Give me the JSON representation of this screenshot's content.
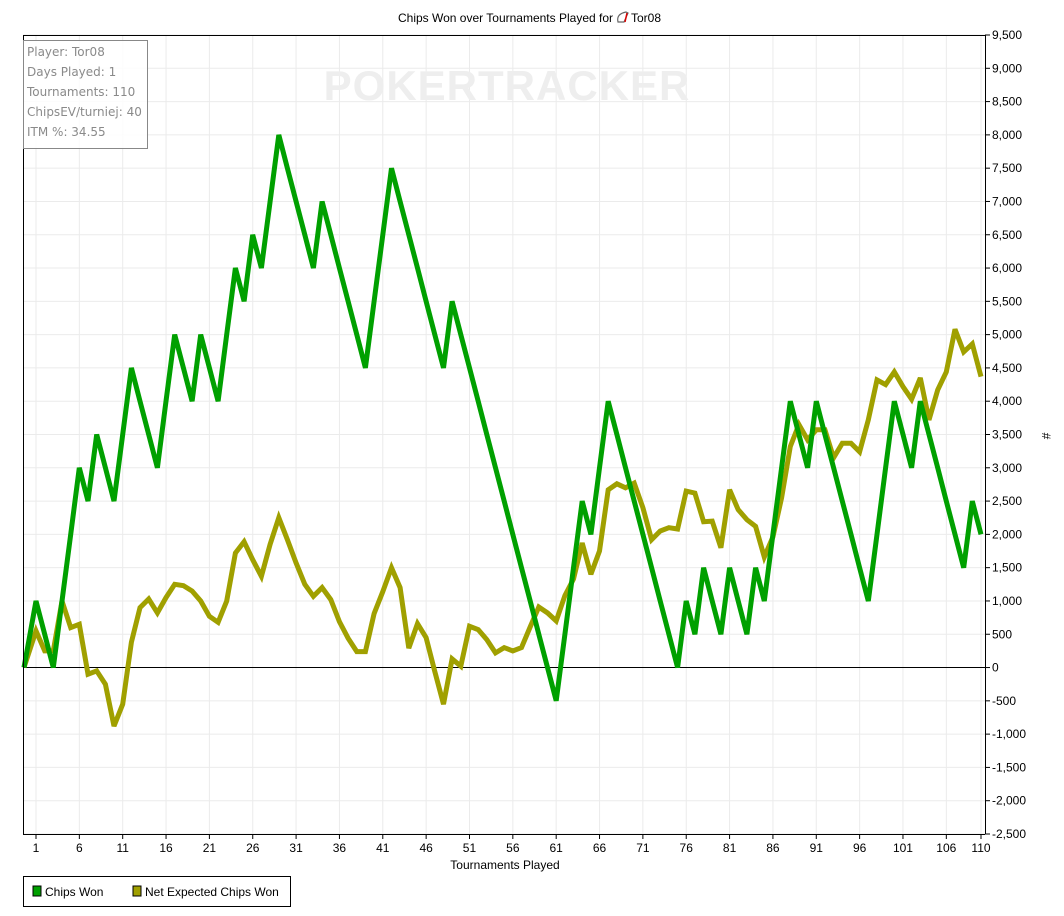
{
  "chart_data": {
    "type": "line",
    "title": "Chips Won over Tournaments Played for",
    "player_name": "Tor08",
    "xlabel": "Tournaments Played",
    "ylabel": "#",
    "xlim": [
      0,
      110
    ],
    "ylim": [
      -2500,
      9500
    ],
    "x_ticks": [
      1,
      6,
      11,
      16,
      21,
      26,
      31,
      36,
      41,
      46,
      51,
      56,
      61,
      66,
      71,
      76,
      81,
      86,
      91,
      96,
      101,
      106,
      110
    ],
    "y_ticks": [
      9500,
      9000,
      8500,
      8000,
      7500,
      7000,
      6500,
      6000,
      5500,
      5000,
      4500,
      4000,
      3500,
      3000,
      2500,
      2000,
      1500,
      1000,
      500,
      0,
      -500,
      -1000,
      -1500,
      -2000,
      -2500
    ],
    "y_tick_labels": [
      "9,500",
      "9,000",
      "8,500",
      "8,000",
      "7,500",
      "7,000",
      "6,500",
      "6,000",
      "5,500",
      "5,000",
      "4,500",
      "4,000",
      "3,500",
      "3,000",
      "2,500",
      "2,000",
      "1,500",
      "1,000",
      "500",
      "0",
      "-500",
      "-1,000",
      "-1,500",
      "-2,000",
      "-2,500"
    ],
    "grid": true,
    "legend_position": "bottom-left",
    "series": [
      {
        "name": "Chips Won",
        "color": "#00a000",
        "values": [
          0,
          1000,
          500,
          0,
          1000,
          2000,
          3000,
          2500,
          3500,
          3000,
          2500,
          3500,
          4500,
          4000,
          3500,
          3000,
          4000,
          5000,
          4500,
          4000,
          5000,
          4500,
          4000,
          5000,
          6000,
          5500,
          6500,
          6000,
          7000,
          8000,
          7500,
          7000,
          6500,
          6000,
          7000,
          6500,
          6000,
          5500,
          5000,
          4500,
          5500,
          6500,
          7500,
          7000,
          6500,
          6000,
          5500,
          5000,
          4500,
          5500,
          5000,
          4500,
          4000,
          3500,
          3000,
          2500,
          2000,
          1500,
          1000,
          500,
          0,
          -500,
          500,
          1500,
          2500,
          2000,
          3000,
          4000,
          3500,
          3000,
          2500,
          2000,
          1500,
          1000,
          500,
          0,
          1000,
          500,
          1500,
          1000,
          500,
          1500,
          1000,
          500,
          1500,
          1000,
          2000,
          3000,
          4000,
          3500,
          3000,
          4000,
          3500,
          3000,
          2500,
          2000,
          1500,
          1000,
          2000,
          3000,
          4000,
          3500,
          3000,
          4000,
          3500,
          3000,
          2500,
          2000,
          1500,
          2500,
          2000
        ]
      },
      {
        "name": "Net Expected Chips Won",
        "color": "#a0a000",
        "values": [
          0,
          550,
          250,
          250,
          1000,
          600,
          650,
          -100,
          -50,
          -250,
          -880,
          -550,
          380,
          900,
          1030,
          820,
          1050,
          1250,
          1230,
          1150,
          1000,
          770,
          680,
          1000,
          1720,
          1890,
          1620,
          1370,
          1850,
          2250,
          1920,
          1570,
          1250,
          1070,
          1200,
          1020,
          690,
          440,
          240,
          240,
          810,
          1140,
          1500,
          1200,
          290,
          660,
          450,
          -60,
          -550,
          130,
          20,
          620,
          570,
          420,
          220,
          300,
          250,
          300,
          610,
          910,
          820,
          700,
          1080,
          1330,
          1870,
          1400,
          1750,
          2670,
          2760,
          2700,
          2770,
          2400,
          1920,
          2050,
          2100,
          2080,
          2650,
          2620,
          2190,
          2200,
          1800,
          2670,
          2370,
          2220,
          2120,
          1660,
          1960,
          2550,
          3320,
          3650,
          3420,
          3570,
          3570,
          3150,
          3370,
          3370,
          3240,
          3720,
          4320,
          4250,
          4440,
          4220,
          4030,
          4350,
          3720,
          4170,
          4440,
          5080,
          4740,
          4860,
          4370
        ]
      }
    ]
  },
  "info_box": {
    "lines": [
      "Player: Tor08",
      "Days Played: 1",
      "Tournaments: 110",
      "ChipsEV/turniej: 40",
      "ITM %: 34.55"
    ]
  },
  "watermark": "POKERTRACKER",
  "colors": {
    "grid": "#ebebeb",
    "watermark": "#eeeeee",
    "info_text": "#8a8a8a"
  }
}
